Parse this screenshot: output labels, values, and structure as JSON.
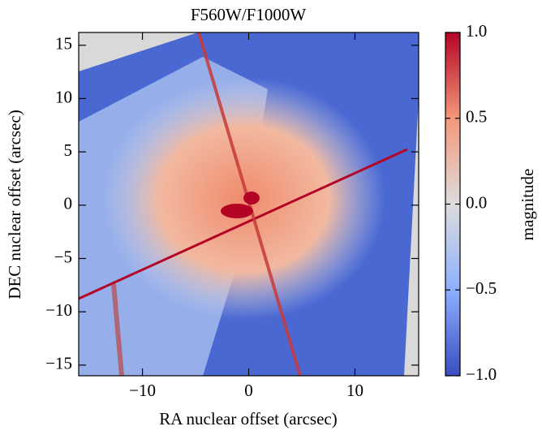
{
  "chart_data": {
    "type": "image",
    "title": "F560W/F1000W",
    "xlabel": "RA nuclear offset (arcsec)",
    "ylabel": "DEC nuclear offset (arcsec)",
    "xlim": [
      -16,
      16
    ],
    "ylim": [
      -16,
      16.2
    ],
    "xticks": [
      {
        "value": -10,
        "label": "−10"
      },
      0,
      10
    ],
    "yticks": [
      {
        "value": -15,
        "label": "−15"
      },
      {
        "value": -10,
        "label": "−10"
      },
      {
        "value": -5,
        "label": "−5"
      },
      0,
      5,
      10,
      15
    ],
    "colorbar": {
      "label": "magnitude",
      "lim": [
        -1,
        1
      ],
      "ticks": [
        {
          "value": -1,
          "label": "−1.0"
        },
        {
          "value": -0.5,
          "label": "−0.5"
        },
        {
          "value": 0,
          "label": "0.0"
        },
        {
          "value": 0.5,
          "label": "0.5"
        },
        {
          "value": 1,
          "label": "1.0"
        }
      ]
    }
  }
}
